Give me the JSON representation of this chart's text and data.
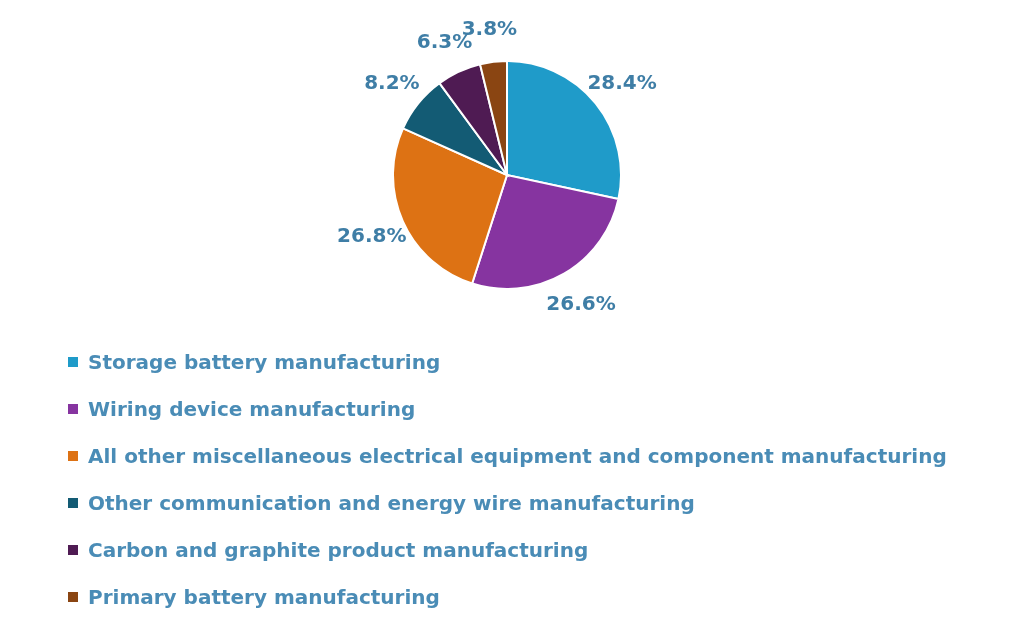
{
  "chart_data": {
    "type": "pie",
    "categories": [
      "Storage battery manufacturing",
      "Wiring device manufacturing",
      "All other miscellaneous electrical equipment and component manufacturing",
      "Other communication and energy wire manufacturing",
      "Carbon and graphite product manufacturing",
      "Primary battery manufacturing"
    ],
    "values": [
      28.4,
      26.6,
      26.8,
      8.2,
      6.3,
      3.8
    ],
    "colors": [
      "#1f9bc9",
      "#8634a0",
      "#dd7214",
      "#135b74",
      "#4f1b53",
      "#8a4512"
    ],
    "value_labels": [
      "28.4%",
      "26.6%",
      "26.8%",
      "8.2%",
      "6.3%",
      "3.8%"
    ],
    "legend": "bottom"
  }
}
